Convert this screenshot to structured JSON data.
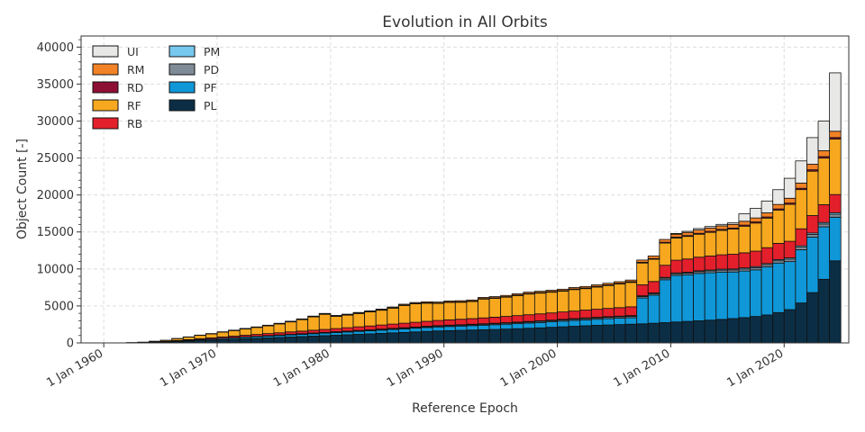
{
  "chart_data": {
    "type": "bar",
    "stacked": true,
    "title": "Evolution in All Orbits",
    "xlabel": "Reference Epoch",
    "ylabel": "Object Count [-]",
    "xlim": [
      1958,
      2025.7
    ],
    "ylim": [
      0,
      41500
    ],
    "grid": true,
    "legend_position": "top-left",
    "x_ticks": [
      {
        "value": 1960,
        "label": "1 Jan 1960"
      },
      {
        "value": 1970,
        "label": "1 Jan 1970"
      },
      {
        "value": 1980,
        "label": "1 Jan 1980"
      },
      {
        "value": 1990,
        "label": "1 Jan 1990"
      },
      {
        "value": 2000,
        "label": "1 Jan 2000"
      },
      {
        "value": 2010,
        "label": "1 Jan 2010"
      },
      {
        "value": 2020,
        "label": "1 Jan 2020"
      }
    ],
    "y_ticks": [
      {
        "value": 0,
        "label": "0"
      },
      {
        "value": 5000,
        "label": "5000"
      },
      {
        "value": 10000,
        "label": "10000"
      },
      {
        "value": 15000,
        "label": "15000"
      },
      {
        "value": 20000,
        "label": "20000"
      },
      {
        "value": 25000,
        "label": "25000"
      },
      {
        "value": 30000,
        "label": "30000"
      },
      {
        "value": 35000,
        "label": "35000"
      },
      {
        "value": 40000,
        "label": "40000"
      }
    ],
    "x": [
      1958,
      1959,
      1960,
      1961,
      1962,
      1963,
      1964,
      1965,
      1966,
      1967,
      1968,
      1969,
      1970,
      1971,
      1972,
      1973,
      1974,
      1975,
      1976,
      1977,
      1978,
      1979,
      1980,
      1981,
      1982,
      1983,
      1984,
      1985,
      1986,
      1987,
      1988,
      1989,
      1990,
      1991,
      1992,
      1993,
      1994,
      1995,
      1996,
      1997,
      1998,
      1999,
      2000,
      2001,
      2002,
      2003,
      2004,
      2005,
      2006,
      2007,
      2008,
      2009,
      2010,
      2011,
      2012,
      2013,
      2014,
      2015,
      2016,
      2017,
      2018,
      2019,
      2020,
      2021,
      2022,
      2023,
      2024
    ],
    "series": [
      {
        "name": "PL",
        "color": "#0b2e45",
        "values": [
          0,
          0,
          0,
          5,
          10,
          20,
          50,
          90,
          160,
          230,
          300,
          360,
          430,
          500,
          560,
          620,
          680,
          740,
          800,
          860,
          920,
          980,
          1040,
          1100,
          1160,
          1220,
          1290,
          1360,
          1420,
          1490,
          1560,
          1620,
          1660,
          1700,
          1740,
          1780,
          1820,
          1870,
          1920,
          1980,
          2040,
          2110,
          2180,
          2250,
          2320,
          2380,
          2430,
          2480,
          2530,
          2580,
          2660,
          2740,
          2830,
          2910,
          2990,
          3080,
          3180,
          3290,
          3420,
          3580,
          3780,
          4100,
          4500,
          5400,
          6800,
          8600,
          11100
        ]
      },
      {
        "name": "PF",
        "color": "#0f97d8",
        "values": [
          0,
          0,
          0,
          0,
          10,
          20,
          40,
          60,
          80,
          100,
          120,
          140,
          160,
          180,
          200,
          220,
          240,
          260,
          280,
          300,
          320,
          340,
          360,
          380,
          400,
          420,
          440,
          460,
          480,
          500,
          520,
          540,
          560,
          580,
          600,
          620,
          640,
          660,
          680,
          700,
          720,
          740,
          760,
          780,
          800,
          820,
          840,
          860,
          880,
          3500,
          3800,
          5800,
          6300,
          6300,
          6400,
          6400,
          6400,
          6300,
          6300,
          6300,
          6500,
          6700,
          6500,
          7200,
          7500,
          7100,
          5900
        ]
      },
      {
        "name": "PD",
        "color": "#7f8c97",
        "values": [
          0,
          0,
          0,
          0,
          0,
          0,
          0,
          0,
          10,
          10,
          15,
          20,
          25,
          30,
          35,
          40,
          45,
          50,
          55,
          60,
          65,
          70,
          75,
          80,
          85,
          90,
          95,
          100,
          105,
          110,
          115,
          120,
          120,
          120,
          120,
          125,
          130,
          135,
          140,
          145,
          150,
          155,
          160,
          165,
          170,
          175,
          180,
          185,
          190,
          195,
          200,
          210,
          220,
          230,
          240,
          250,
          260,
          270,
          280,
          290,
          300,
          310,
          330,
          350,
          370,
          380,
          390
        ]
      },
      {
        "name": "PM",
        "color": "#76c8ef",
        "values": [
          0,
          0,
          0,
          0,
          0,
          0,
          0,
          0,
          0,
          0,
          5,
          5,
          10,
          10,
          15,
          15,
          20,
          20,
          25,
          25,
          30,
          30,
          35,
          35,
          40,
          40,
          45,
          45,
          50,
          50,
          55,
          55,
          60,
          60,
          65,
          65,
          70,
          70,
          75,
          75,
          80,
          80,
          85,
          85,
          90,
          90,
          95,
          95,
          100,
          100,
          105,
          110,
          115,
          120,
          125,
          130,
          135,
          140,
          145,
          150,
          155,
          160,
          170,
          180,
          190,
          200,
          210
        ]
      },
      {
        "name": "RB",
        "color": "#e31f2b",
        "values": [
          0,
          0,
          0,
          0,
          5,
          10,
          30,
          50,
          80,
          100,
          130,
          150,
          180,
          200,
          230,
          250,
          280,
          300,
          330,
          350,
          380,
          400,
          430,
          460,
          490,
          520,
          550,
          580,
          610,
          640,
          670,
          700,
          720,
          740,
          760,
          790,
          820,
          850,
          880,
          910,
          940,
          970,
          1000,
          1030,
          1060,
          1090,
          1120,
          1150,
          1180,
          1480,
          1540,
          1640,
          1720,
          1790,
          1840,
          1890,
          1940,
          1990,
          2040,
          2090,
          2140,
          2190,
          2240,
          2300,
          2360,
          2410,
          2460
        ]
      },
      {
        "name": "RF",
        "color": "#f7a81e",
        "values": [
          0,
          0,
          0,
          0,
          20,
          40,
          90,
          140,
          250,
          350,
          450,
          550,
          650,
          750,
          850,
          950,
          1050,
          1200,
          1350,
          1550,
          1800,
          2050,
          1650,
          1700,
          1800,
          1900,
          2000,
          2150,
          2400,
          2500,
          2450,
          2300,
          2350,
          2300,
          2300,
          2550,
          2550,
          2600,
          2700,
          2800,
          2800,
          2800,
          2800,
          2900,
          2900,
          3000,
          3100,
          3200,
          3300,
          2950,
          3000,
          3000,
          3000,
          3050,
          3100,
          3200,
          3300,
          3400,
          3600,
          3800,
          4000,
          4500,
          5000,
          5300,
          6000,
          6300,
          7500
        ]
      },
      {
        "name": "RD",
        "color": "#8e0f35",
        "values": [
          0,
          0,
          0,
          0,
          0,
          0,
          0,
          0,
          0,
          0,
          5,
          5,
          10,
          10,
          15,
          15,
          20,
          20,
          25,
          25,
          30,
          30,
          35,
          35,
          40,
          40,
          45,
          45,
          50,
          50,
          55,
          55,
          60,
          60,
          65,
          65,
          70,
          70,
          75,
          75,
          80,
          80,
          85,
          85,
          90,
          90,
          95,
          95,
          100,
          100,
          105,
          110,
          115,
          120,
          125,
          130,
          135,
          140,
          145,
          150,
          155,
          160,
          170,
          180,
          190,
          200,
          210
        ]
      },
      {
        "name": "RM",
        "color": "#f28226",
        "values": [
          0,
          0,
          0,
          0,
          0,
          5,
          10,
          15,
          20,
          25,
          30,
          35,
          40,
          45,
          50,
          55,
          60,
          65,
          70,
          75,
          80,
          85,
          90,
          95,
          100,
          105,
          110,
          115,
          120,
          125,
          130,
          135,
          140,
          145,
          150,
          155,
          160,
          165,
          170,
          175,
          180,
          185,
          190,
          195,
          200,
          205,
          210,
          215,
          220,
          300,
          350,
          380,
          400,
          420,
          440,
          460,
          480,
          500,
          520,
          540,
          560,
          600,
          650,
          700,
          750,
          800,
          850
        ]
      },
      {
        "name": "UI",
        "color": "#e8e8e6",
        "values": [
          0,
          0,
          0,
          0,
          0,
          0,
          0,
          0,
          0,
          0,
          0,
          0,
          0,
          0,
          0,
          0,
          0,
          0,
          0,
          0,
          0,
          0,
          0,
          0,
          0,
          0,
          0,
          0,
          0,
          0,
          0,
          0,
          0,
          0,
          0,
          0,
          0,
          0,
          0,
          0,
          0,
          0,
          0,
          0,
          0,
          0,
          0,
          0,
          0,
          0,
          0,
          0,
          100,
          150,
          200,
          200,
          200,
          200,
          1000,
          1300,
          1600,
          2000,
          2700,
          3000,
          3600,
          4000,
          7900
        ]
      }
    ],
    "legend_order": [
      {
        "col": 0,
        "items": [
          "UI",
          "RM",
          "RD",
          "RF",
          "RB"
        ]
      },
      {
        "col": 1,
        "items": [
          "PM",
          "PD",
          "PF",
          "PL"
        ]
      }
    ]
  }
}
